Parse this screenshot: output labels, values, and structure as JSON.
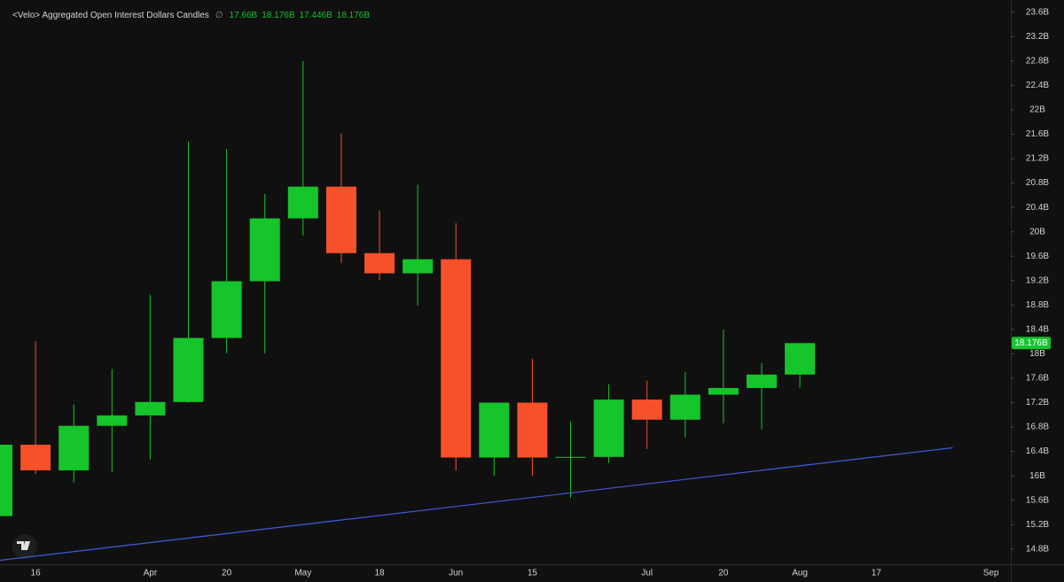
{
  "chart_data": {
    "type": "candlestick",
    "title": "<Velo> Aggregated Open Interest Dollars Candles",
    "status_symbol": "∅",
    "up_color": "#16c42b",
    "down_color": "#f7512b",
    "categories": [
      null,
      "16",
      null,
      null,
      "Apr",
      null,
      "20",
      null,
      "May",
      null,
      "18",
      null,
      "Jun",
      null,
      "15",
      null,
      null,
      "Jul",
      null,
      "20",
      null,
      "Aug",
      null,
      "17",
      null,
      null,
      "Sep"
    ],
    "candles": [
      {
        "open": 15.34,
        "high": 16.51,
        "low": 15.34,
        "close": 16.51
      },
      {
        "open": 16.51,
        "high": 18.21,
        "low": 16.03,
        "close": 16.09
      },
      {
        "open": 16.09,
        "high": 17.17,
        "low": 15.89,
        "close": 16.82
      },
      {
        "open": 16.82,
        "high": 17.75,
        "low": 16.06,
        "close": 16.99
      },
      {
        "open": 16.99,
        "high": 18.97,
        "low": 16.27,
        "close": 17.21
      },
      {
        "open": 17.21,
        "high": 21.48,
        "low": 17.2,
        "close": 18.26
      },
      {
        "open": 18.26,
        "high": 21.36,
        "low": 18.01,
        "close": 19.19
      },
      {
        "open": 19.19,
        "high": 20.62,
        "low": 18.01,
        "close": 20.22
      },
      {
        "open": 20.22,
        "high": 22.8,
        "low": 19.94,
        "close": 20.74
      },
      {
        "open": 20.74,
        "high": 21.61,
        "low": 19.49,
        "close": 19.65
      },
      {
        "open": 19.65,
        "high": 20.35,
        "low": 19.21,
        "close": 19.32
      },
      {
        "open": 19.32,
        "high": 20.77,
        "low": 18.79,
        "close": 19.55
      },
      {
        "open": 19.55,
        "high": 20.14,
        "low": 16.09,
        "close": 16.3
      },
      {
        "open": 16.3,
        "high": 17.2,
        "low": 16.0,
        "close": 17.2
      },
      {
        "open": 17.2,
        "high": 17.92,
        "low": 16.0,
        "close": 16.3
      },
      {
        "open": 16.3,
        "high": 16.89,
        "low": 15.64,
        "close": 16.31
      },
      {
        "open": 16.31,
        "high": 17.5,
        "low": 16.21,
        "close": 17.25
      },
      {
        "open": 17.25,
        "high": 17.56,
        "low": 16.44,
        "close": 16.92
      },
      {
        "open": 16.92,
        "high": 17.7,
        "low": 16.63,
        "close": 17.33
      },
      {
        "open": 17.33,
        "high": 18.4,
        "low": 16.86,
        "close": 17.44
      },
      {
        "open": 17.44,
        "high": 17.85,
        "low": 16.76,
        "close": 17.66
      },
      {
        "open": 17.66,
        "high": 18.176,
        "low": 17.446,
        "close": 18.176,
        "value_labels": {
          "open": "17.66B",
          "high": "18.176B",
          "low": "17.446B",
          "close": "18.176B"
        }
      }
    ],
    "ylim": [
      14.55,
      23.8
    ],
    "yticks": [
      {
        "value": 14.8,
        "label": "14.8B"
      },
      {
        "value": 15.2,
        "label": "15.2B"
      },
      {
        "value": 15.6,
        "label": "15.6B"
      },
      {
        "value": 16,
        "label": "16B"
      },
      {
        "value": 16.4,
        "label": "16.4B"
      },
      {
        "value": 16.8,
        "label": "16.8B"
      },
      {
        "value": 17.2,
        "label": "17.2B"
      },
      {
        "value": 17.6,
        "label": "17.6B"
      },
      {
        "value": 18,
        "label": "18B"
      },
      {
        "value": 18.4,
        "label": "18.4B"
      },
      {
        "value": 18.8,
        "label": "18.8B"
      },
      {
        "value": 19.2,
        "label": "19.2B"
      },
      {
        "value": 19.6,
        "label": "19.6B"
      },
      {
        "value": 20,
        "label": "20B"
      },
      {
        "value": 20.4,
        "label": "20.4B"
      },
      {
        "value": 20.8,
        "label": "20.8B"
      },
      {
        "value": 21.2,
        "label": "21.2B"
      },
      {
        "value": 21.6,
        "label": "21.6B"
      },
      {
        "value": 22,
        "label": "22B"
      },
      {
        "value": 22.4,
        "label": "22.4B"
      },
      {
        "value": 22.8,
        "label": "22.8B"
      },
      {
        "value": 23.2,
        "label": "23.2B"
      },
      {
        "value": 23.6,
        "label": "23.6B"
      }
    ],
    "trendline": {
      "color": "#3f5be0",
      "start": {
        "x": 0,
        "y": 14.61
      },
      "end": {
        "x": 25,
        "y": 16.46
      }
    },
    "grid": false
  }
}
